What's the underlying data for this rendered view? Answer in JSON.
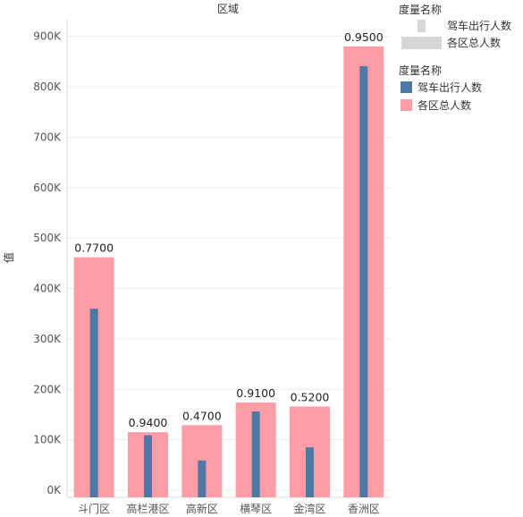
{
  "chart_data": {
    "type": "bar",
    "title": "区域",
    "ylabel": "值",
    "categories": [
      "斗门区",
      "高栏港区",
      "高新区",
      "横琴区",
      "金湾区",
      "香洲区"
    ],
    "series": [
      {
        "name": "各区总人数",
        "values": [
          462000,
          115000,
          129000,
          174000,
          166000,
          880000
        ],
        "color": "#ff9da7"
      },
      {
        "name": "驾车出行人数",
        "values": [
          360000,
          109000,
          59000,
          156000,
          85000,
          841000
        ],
        "color": "#4e79a7"
      }
    ],
    "data_labels": [
      "0.7700",
      "0.9400",
      "0.4700",
      "0.9100",
      "0.5200",
      "0.9500"
    ],
    "ylim": [
      0,
      950000
    ],
    "yticks": [
      "0K",
      "100K",
      "200K",
      "300K",
      "400K",
      "500K",
      "600K",
      "700K",
      "800K",
      "900K"
    ],
    "grid": true,
    "legend_position": "right"
  },
  "legend": {
    "size_heading": "度量名称",
    "size_items": [
      "驾车出行人数",
      "各区总人数"
    ],
    "color_heading": "度量名称",
    "color_items": [
      {
        "label": "驾车出行人数",
        "color": "#4e79a7"
      },
      {
        "label": "各区总人数",
        "color": "#ff9da7"
      }
    ],
    "size_swatch_color": "#d6d6d6"
  }
}
